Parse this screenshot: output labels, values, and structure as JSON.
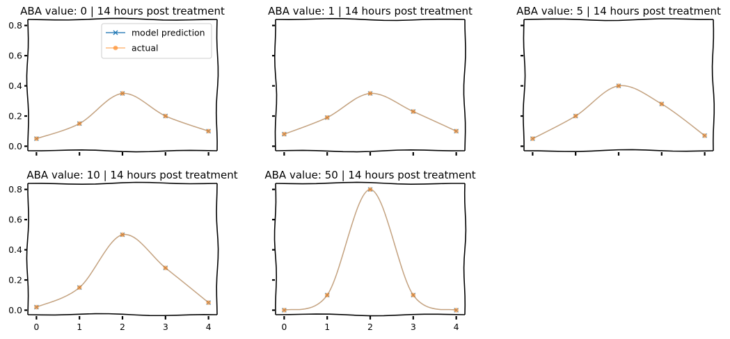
{
  "colors": {
    "prediction": "#1f77b4",
    "actual": "#ff7f0e"
  },
  "legend": {
    "placement": "top-right of first panel",
    "items": [
      {
        "label": "model prediction",
        "marker": "x"
      },
      {
        "label": "actual",
        "marker": "o"
      }
    ]
  },
  "chart_data": [
    {
      "type": "line",
      "title": "ABA value: 0 | 14 hours post treatment",
      "x": [
        0,
        1,
        2,
        3,
        4
      ],
      "xlim": [
        -0.2,
        4.2
      ],
      "ylim": [
        -0.03,
        0.84
      ],
      "yticks": [
        "0.0",
        "0.2",
        "0.4",
        "0.6",
        "0.8"
      ],
      "xticks": [],
      "series": [
        {
          "name": "model prediction",
          "values": [
            0.05,
            0.15,
            0.35,
            0.2,
            0.1
          ]
        },
        {
          "name": "actual",
          "values": [
            0.05,
            0.15,
            0.35,
            0.2,
            0.1
          ]
        }
      ]
    },
    {
      "type": "line",
      "title": "ABA value: 1 | 14 hours post treatment",
      "x": [
        0,
        1,
        2,
        3,
        4
      ],
      "xlim": [
        -0.2,
        4.2
      ],
      "ylim": [
        -0.03,
        0.84
      ],
      "yticks": [],
      "xticks": [],
      "series": [
        {
          "name": "model prediction",
          "values": [
            0.08,
            0.19,
            0.35,
            0.23,
            0.1
          ]
        },
        {
          "name": "actual",
          "values": [
            0.08,
            0.19,
            0.35,
            0.23,
            0.1
          ]
        }
      ]
    },
    {
      "type": "line",
      "title": "ABA value: 5 | 14 hours post treatment",
      "x": [
        0,
        1,
        2,
        3,
        4
      ],
      "xlim": [
        -0.2,
        4.2
      ],
      "ylim": [
        -0.03,
        0.84
      ],
      "yticks": [],
      "xticks": [],
      "series": [
        {
          "name": "model prediction",
          "values": [
            0.05,
            0.2,
            0.4,
            0.28,
            0.07
          ]
        },
        {
          "name": "actual",
          "values": [
            0.05,
            0.2,
            0.4,
            0.28,
            0.07
          ]
        }
      ]
    },
    {
      "type": "line",
      "title": "ABA value: 10 | 14 hours post treatment",
      "x": [
        0,
        1,
        2,
        3,
        4
      ],
      "xlim": [
        -0.2,
        4.2
      ],
      "ylim": [
        -0.03,
        0.84
      ],
      "yticks": [
        "0.0",
        "0.2",
        "0.4",
        "0.6",
        "0.8"
      ],
      "xticks": [
        "0",
        "1",
        "2",
        "3",
        "4"
      ],
      "series": [
        {
          "name": "model prediction",
          "values": [
            0.02,
            0.15,
            0.5,
            0.28,
            0.05
          ]
        },
        {
          "name": "actual",
          "values": [
            0.02,
            0.15,
            0.5,
            0.28,
            0.05
          ]
        }
      ]
    },
    {
      "type": "line",
      "title": "ABA value: 50 | 14 hours post treatment",
      "x": [
        0,
        1,
        2,
        3,
        4
      ],
      "xlim": [
        -0.2,
        4.2
      ],
      "ylim": [
        -0.03,
        0.84
      ],
      "yticks": [],
      "xticks": [
        "0",
        "1",
        "2",
        "3",
        "4"
      ],
      "series": [
        {
          "name": "model prediction",
          "values": [
            0.0,
            0.1,
            0.8,
            0.1,
            0.0
          ]
        },
        {
          "name": "actual",
          "values": [
            0.0,
            0.1,
            0.8,
            0.1,
            0.0
          ]
        }
      ]
    }
  ]
}
